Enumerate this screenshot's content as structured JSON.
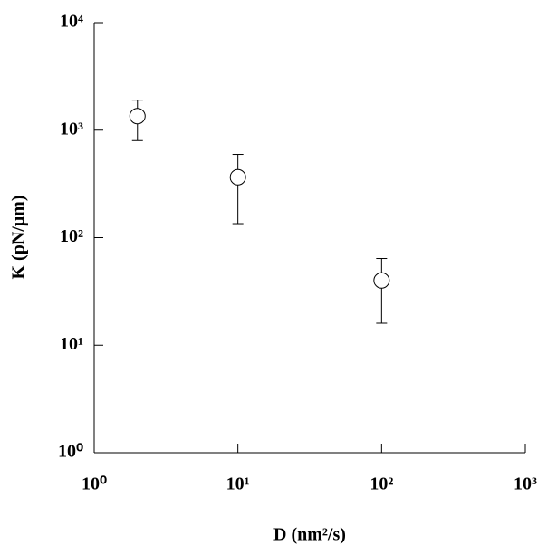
{
  "chart_data": {
    "type": "scatter",
    "xlabel": "D (nm²/s)",
    "ylabel": "K (pN/μm)",
    "xscale": "log",
    "yscale": "log",
    "x": [
      2,
      10,
      100
    ],
    "series": [
      {
        "color": "#000000",
        "values": [
          1350,
          365,
          40
        ],
        "errors": [
          550,
          230,
          24
        ]
      }
    ],
    "xlim": [
      1,
      1000
    ],
    "xticks": [
      {
        "value": 1,
        "label": "10⁰"
      },
      {
        "value": 10,
        "label": "10¹"
      },
      {
        "value": 100,
        "label": "10²"
      },
      {
        "value": 1000,
        "label": "10³"
      }
    ],
    "ylim": [
      1,
      10000
    ],
    "yticks": [
      {
        "value": 1,
        "label": "10⁰"
      },
      {
        "value": 10,
        "label": "10¹"
      },
      {
        "value": 100,
        "label": "10²"
      },
      {
        "value": 1000,
        "label": "10³"
      },
      {
        "value": 10000,
        "label": "10⁴"
      }
    ]
  }
}
